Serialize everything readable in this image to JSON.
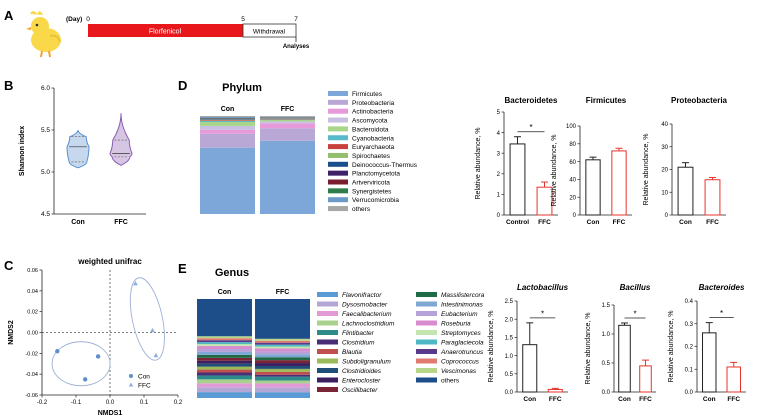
{
  "panel_labels": {
    "A": "A",
    "B": "B",
    "C": "C",
    "D": "D",
    "E": "E"
  },
  "timeline": {
    "day_label": "(Day)",
    "ticks": [
      "0",
      "5",
      "7"
    ],
    "phases": [
      {
        "label": "Florfenicol",
        "color": "#e8171b"
      },
      {
        "label": "Withdrawal",
        "color": "#ffffff"
      }
    ],
    "analyses_label": "Analyses"
  },
  "colors": {
    "con": "#222222",
    "ffc": "#e8332a",
    "violin_con": "#5b8fcf",
    "violin_ffc": "#8a5bb0",
    "pcoa_point": "#5b8fcf",
    "ellipse": "#9fb0d8"
  },
  "chart_data": [
    {
      "id": "shannon",
      "type": "violin",
      "ylabel": "Shannon index",
      "categories": [
        "Con",
        "FFC"
      ],
      "yticks": [
        "4.5",
        "5.0",
        "5.5",
        "6.0"
      ],
      "ylim": [
        4.5,
        6.0
      ],
      "series": [
        {
          "name": "Con",
          "min": 5.05,
          "q1": 5.12,
          "median": 5.3,
          "q3": 5.42,
          "max": 5.5
        },
        {
          "name": "FFC",
          "min": 5.08,
          "q1": 5.18,
          "median": 5.22,
          "q3": 5.38,
          "max": 5.7
        }
      ]
    },
    {
      "id": "pcoa",
      "type": "scatter",
      "title": "weighted unifrac",
      "xlabel": "NMDS1",
      "ylabel": "NMDS2",
      "xticks": [
        "-0.2",
        "-0.1",
        "0.0",
        "0.1",
        "0.2"
      ],
      "xlim": [
        -0.2,
        0.2
      ],
      "yticks": [
        "-0.06",
        "-0.04",
        "-0.02",
        "0.00",
        "0.02",
        "0.04",
        "0.06"
      ],
      "ylim": [
        -0.06,
        0.06
      ],
      "legend": [
        "Con",
        "FFC"
      ],
      "series": [
        {
          "name": "Con",
          "points": [
            [
              -0.155,
              -0.018
            ],
            [
              -0.035,
              -0.023
            ],
            [
              -0.073,
              -0.045
            ]
          ]
        },
        {
          "name": "FFC",
          "points": [
            [
              0.075,
              0.047
            ],
            [
              0.125,
              0.002
            ],
            [
              0.135,
              -0.022
            ]
          ]
        }
      ]
    },
    {
      "id": "phylum",
      "type": "stacked-bar",
      "title": "Phylum",
      "categories": [
        "Con",
        "FFC"
      ],
      "series": [
        {
          "name": "Firmicutes",
          "color": "#7da7d9",
          "values": [
            67,
            75
          ]
        },
        {
          "name": "Proteobacteria",
          "color": "#b9a8d6",
          "values": [
            14,
            13
          ]
        },
        {
          "name": "Actinobacteria",
          "color": "#e79ad9",
          "values": [
            4,
            5
          ]
        },
        {
          "name": "Ascomycota",
          "color": "#c8c0e2",
          "values": [
            4,
            2
          ]
        },
        {
          "name": "Bacteroidota",
          "color": "#a8d58a",
          "values": [
            4,
            1.5
          ]
        },
        {
          "name": "Cyanobacteria",
          "color": "#57b9c9",
          "values": [
            1,
            0.5
          ]
        },
        {
          "name": "Euryarchaeota",
          "color": "#c8413c",
          "values": [
            0.7,
            0.5
          ]
        },
        {
          "name": "Spirochaetes",
          "color": "#94bf6d",
          "values": [
            0.6,
            0.5
          ]
        },
        {
          "name": "Deinococcus-Thermus",
          "color": "#1a4f8f",
          "values": [
            0.5,
            0.3
          ]
        },
        {
          "name": "Planctomycetota",
          "color": "#3f2167",
          "values": [
            0.4,
            0.3
          ]
        },
        {
          "name": "Artverviricota",
          "color": "#7a1d30",
          "values": [
            0.4,
            0.3
          ]
        },
        {
          "name": "Synergistetes",
          "color": "#2e7d4a",
          "values": [
            0.4,
            0.3
          ]
        },
        {
          "name": "Verrucomicrobia",
          "color": "#6a9ac8",
          "values": [
            1,
            0.5
          ]
        },
        {
          "name": "others",
          "color": "#a7a7a7",
          "values": [
            1,
            0.8
          ]
        }
      ]
    },
    {
      "id": "bacteroidetes",
      "type": "bar",
      "title": "Bacteroidetes",
      "ylabel": "Relative abundance, %",
      "categories": [
        "Control",
        "FFC"
      ],
      "values": [
        3.45,
        1.35
      ],
      "errors": [
        0.35,
        0.25
      ],
      "yticks": [
        "0",
        "1",
        "2",
        "3",
        "4",
        "5"
      ],
      "ylim": [
        0,
        5
      ],
      "significance": "*"
    },
    {
      "id": "firmicutes",
      "type": "bar",
      "title": "Firmicutes",
      "ylabel": "Relative abundance, %",
      "categories": [
        "Con",
        "FFC"
      ],
      "values": [
        62,
        72
      ],
      "errors": [
        3,
        3
      ],
      "yticks": [
        "0",
        "20",
        "40",
        "60",
        "80",
        "100"
      ],
      "ylim": [
        0,
        100
      ]
    },
    {
      "id": "proteobacteria",
      "type": "bar",
      "title": "Proteobacteria",
      "ylabel": "Relative abundance, %",
      "categories": [
        "Con",
        "FFC"
      ],
      "values": [
        21,
        15.5
      ],
      "errors": [
        2,
        1
      ],
      "yticks": [
        "0",
        "10",
        "20",
        "30",
        "40"
      ],
      "ylim": [
        0,
        40
      ]
    },
    {
      "id": "genus",
      "type": "stacked-bar",
      "title": "Genus",
      "categories": [
        "Con",
        "FFC"
      ],
      "series": [
        {
          "name": "Flavonifractor",
          "color": "#5b9bd5",
          "values": [
            6,
            6
          ]
        },
        {
          "name": "Dysosmobacter",
          "color": "#b4a7d6",
          "values": [
            5,
            5
          ]
        },
        {
          "name": "Faecalibacterium",
          "color": "#e29ad6",
          "values": [
            4,
            4
          ]
        },
        {
          "name": "Lachnoclostridium",
          "color": "#a9d18e",
          "values": [
            4,
            3
          ]
        },
        {
          "name": "Flintibacter",
          "color": "#2e8b8b",
          "values": [
            4,
            4
          ]
        },
        {
          "name": "Clostridium",
          "color": "#4a2e75",
          "values": [
            3,
            2
          ]
        },
        {
          "name": "Blautia",
          "color": "#c0504d",
          "values": [
            3,
            3
          ]
        },
        {
          "name": "Subdoligranulum",
          "color": "#9bbb59",
          "values": [
            3,
            3
          ]
        },
        {
          "name": "Clostridioides",
          "color": "#1f4e79",
          "values": [
            3,
            3
          ]
        },
        {
          "name": "Enterocloster",
          "color": "#3b1f5e",
          "values": [
            3,
            3
          ]
        },
        {
          "name": "Oscillibacter",
          "color": "#7b2436",
          "values": [
            3,
            3
          ]
        },
        {
          "name": "Massilistercora",
          "color": "#1e6b45",
          "values": [
            3,
            3
          ]
        },
        {
          "name": "Intestinimonas",
          "color": "#7fa7d4",
          "values": [
            3,
            3
          ]
        },
        {
          "name": "Eubacterium",
          "color": "#b6a2d8",
          "values": [
            3,
            3
          ]
        },
        {
          "name": "Roseburia",
          "color": "#d98bd0",
          "values": [
            3,
            3
          ]
        },
        {
          "name": "Streptomyces",
          "color": "#c4e5b0",
          "values": [
            2,
            2
          ]
        },
        {
          "name": "Paraglaciecola",
          "color": "#4fb8c4",
          "values": [
            2,
            2
          ]
        },
        {
          "name": "Anaerotruncus",
          "color": "#5a3a8a",
          "values": [
            2,
            2
          ]
        },
        {
          "name": "Coprococcus",
          "color": "#e07a70",
          "values": [
            2,
            2
          ]
        },
        {
          "name": "Vescimonas",
          "color": "#b6d78a",
          "values": [
            2,
            2
          ]
        },
        {
          "name": "others",
          "color": "#1d4e89",
          "values": [
            38,
            41
          ]
        }
      ]
    },
    {
      "id": "lactobacillus",
      "type": "bar",
      "title": "Lactobacillus",
      "ylabel": "Relative abundance, %",
      "categories": [
        "Con",
        "FFC"
      ],
      "values": [
        1.3,
        0.07
      ],
      "errors": [
        0.6,
        0.03
      ],
      "yticks": [
        "0.0",
        "0.5",
        "1.0",
        "1.5",
        "2.0",
        "2.5"
      ],
      "ylim": [
        0,
        2.5
      ],
      "significance": "*"
    },
    {
      "id": "bacillus",
      "type": "bar",
      "title": "Bacillus",
      "ylabel": "Relative abundance, %",
      "categories": [
        "Con",
        "FFC"
      ],
      "values": [
        1.15,
        0.45
      ],
      "errors": [
        0.04,
        0.1
      ],
      "yticks": [
        "0.0",
        "0.5",
        "1.0",
        "1.5"
      ],
      "ylim": [
        0,
        1.5
      ],
      "significance": "*"
    },
    {
      "id": "bacteroides",
      "type": "bar",
      "title": "Bacteroides",
      "ylabel": "Relative abundance, %",
      "categories": [
        "Con",
        "FFC"
      ],
      "values": [
        0.26,
        0.11
      ],
      "errors": [
        0.045,
        0.02
      ],
      "yticks": [
        "0.0",
        "0.1",
        "0.2",
        "0.3",
        "0.4"
      ],
      "ylim": [
        0,
        0.4
      ],
      "significance": "*"
    }
  ]
}
